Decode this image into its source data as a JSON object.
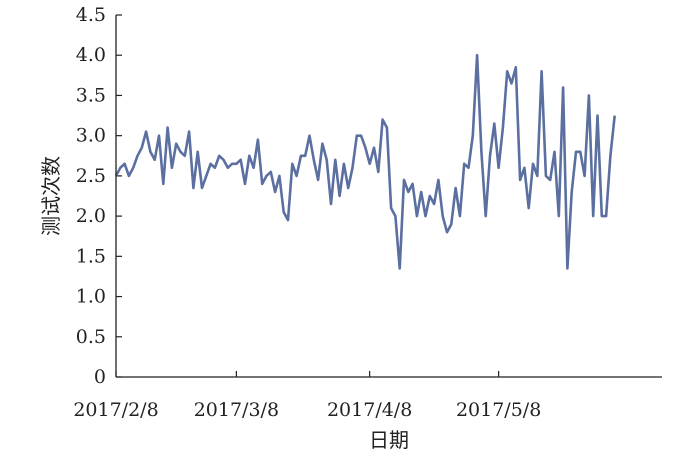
{
  "chart_data": {
    "type": "line",
    "xlabel": "日期",
    "ylabel": "测试次数",
    "ylim": [
      0,
      4.5
    ],
    "yticks": [
      "0",
      "0.5",
      "1.0",
      "1.5",
      "2.0",
      "2.5",
      "3.0",
      "3.5",
      "4.0",
      "4.5"
    ],
    "xlim": [
      "2017-02-08",
      "2017-06-15"
    ],
    "xticks": [
      {
        "date": "2017-02-08",
        "label": "2017/2/8"
      },
      {
        "date": "2017-03-08",
        "label": "2017/3/8"
      },
      {
        "date": "2017-04-08",
        "label": "2017/4/8"
      },
      {
        "date": "2017-05-08",
        "label": "2017/5/8"
      }
    ],
    "grid": false,
    "legend": "none",
    "line_color": "#5b6fa0",
    "series": [
      {
        "points": [
          [
            "2017-02-08",
            2.5
          ],
          [
            "2017-02-09",
            2.6
          ],
          [
            "2017-02-10",
            2.65
          ],
          [
            "2017-02-11",
            2.5
          ],
          [
            "2017-02-12",
            2.6
          ],
          [
            "2017-02-13",
            2.75
          ],
          [
            "2017-02-14",
            2.85
          ],
          [
            "2017-02-15",
            3.05
          ],
          [
            "2017-02-16",
            2.8
          ],
          [
            "2017-02-17",
            2.7
          ],
          [
            "2017-02-18",
            3.0
          ],
          [
            "2017-02-19",
            2.4
          ],
          [
            "2017-02-20",
            3.1
          ],
          [
            "2017-02-21",
            2.6
          ],
          [
            "2017-02-22",
            2.9
          ],
          [
            "2017-02-23",
            2.8
          ],
          [
            "2017-02-24",
            2.75
          ],
          [
            "2017-02-25",
            3.05
          ],
          [
            "2017-02-26",
            2.35
          ],
          [
            "2017-02-27",
            2.8
          ],
          [
            "2017-02-28",
            2.35
          ],
          [
            "2017-03-01",
            2.5
          ],
          [
            "2017-03-02",
            2.65
          ],
          [
            "2017-03-03",
            2.6
          ],
          [
            "2017-03-04",
            2.75
          ],
          [
            "2017-03-05",
            2.7
          ],
          [
            "2017-03-06",
            2.6
          ],
          [
            "2017-03-07",
            2.65
          ],
          [
            "2017-03-08",
            2.65
          ],
          [
            "2017-03-09",
            2.7
          ],
          [
            "2017-03-10",
            2.4
          ],
          [
            "2017-03-11",
            2.75
          ],
          [
            "2017-03-12",
            2.6
          ],
          [
            "2017-03-13",
            2.95
          ],
          [
            "2017-03-14",
            2.4
          ],
          [
            "2017-03-15",
            2.5
          ],
          [
            "2017-03-16",
            2.55
          ],
          [
            "2017-03-17",
            2.3
          ],
          [
            "2017-03-18",
            2.5
          ],
          [
            "2017-03-19",
            2.05
          ],
          [
            "2017-03-20",
            1.95
          ],
          [
            "2017-03-21",
            2.65
          ],
          [
            "2017-03-22",
            2.5
          ],
          [
            "2017-03-23",
            2.75
          ],
          [
            "2017-03-24",
            2.75
          ],
          [
            "2017-03-25",
            3.0
          ],
          [
            "2017-03-26",
            2.7
          ],
          [
            "2017-03-27",
            2.45
          ],
          [
            "2017-03-28",
            2.9
          ],
          [
            "2017-03-29",
            2.7
          ],
          [
            "2017-03-30",
            2.15
          ],
          [
            "2017-03-31",
            2.7
          ],
          [
            "2017-04-01",
            2.25
          ],
          [
            "2017-04-02",
            2.65
          ],
          [
            "2017-04-03",
            2.35
          ],
          [
            "2017-04-04",
            2.6
          ],
          [
            "2017-04-05",
            3.0
          ],
          [
            "2017-04-06",
            3.0
          ],
          [
            "2017-04-07",
            2.85
          ],
          [
            "2017-04-08",
            2.65
          ],
          [
            "2017-04-09",
            2.85
          ],
          [
            "2017-04-10",
            2.55
          ],
          [
            "2017-04-11",
            3.2
          ],
          [
            "2017-04-12",
            3.1
          ],
          [
            "2017-04-13",
            2.1
          ],
          [
            "2017-04-14",
            2.0
          ],
          [
            "2017-04-15",
            1.35
          ],
          [
            "2017-04-16",
            2.45
          ],
          [
            "2017-04-17",
            2.3
          ],
          [
            "2017-04-18",
            2.4
          ],
          [
            "2017-04-19",
            2.0
          ],
          [
            "2017-04-20",
            2.3
          ],
          [
            "2017-04-21",
            2.0
          ],
          [
            "2017-04-22",
            2.25
          ],
          [
            "2017-04-23",
            2.15
          ],
          [
            "2017-04-24",
            2.45
          ],
          [
            "2017-04-25",
            2.0
          ],
          [
            "2017-04-26",
            1.8
          ],
          [
            "2017-04-27",
            1.9
          ],
          [
            "2017-04-28",
            2.35
          ],
          [
            "2017-04-29",
            2.0
          ],
          [
            "2017-04-30",
            2.65
          ],
          [
            "2017-05-01",
            2.6
          ],
          [
            "2017-05-02",
            3.0
          ],
          [
            "2017-05-03",
            4.0
          ],
          [
            "2017-05-04",
            2.8
          ],
          [
            "2017-05-05",
            2.0
          ],
          [
            "2017-05-06",
            2.75
          ],
          [
            "2017-05-07",
            3.15
          ],
          [
            "2017-05-08",
            2.6
          ],
          [
            "2017-05-09",
            3.1
          ],
          [
            "2017-05-10",
            3.8
          ],
          [
            "2017-05-11",
            3.65
          ],
          [
            "2017-05-12",
            3.85
          ],
          [
            "2017-05-13",
            2.45
          ],
          [
            "2017-05-14",
            2.6
          ],
          [
            "2017-05-15",
            2.1
          ],
          [
            "2017-05-16",
            2.65
          ],
          [
            "2017-05-17",
            2.5
          ],
          [
            "2017-05-18",
            3.8
          ],
          [
            "2017-05-19",
            2.5
          ],
          [
            "2017-05-20",
            2.45
          ],
          [
            "2017-05-21",
            2.8
          ],
          [
            "2017-05-22",
            2.0
          ],
          [
            "2017-05-23",
            3.6
          ],
          [
            "2017-05-24",
            1.35
          ],
          [
            "2017-05-25",
            2.3
          ],
          [
            "2017-05-26",
            2.8
          ],
          [
            "2017-05-27",
            2.8
          ],
          [
            "2017-05-28",
            2.5
          ],
          [
            "2017-05-29",
            3.5
          ],
          [
            "2017-05-30",
            2.0
          ],
          [
            "2017-05-31",
            3.25
          ],
          [
            "2017-06-01",
            2.0
          ],
          [
            "2017-06-02",
            2.0
          ],
          [
            "2017-06-03",
            2.75
          ],
          [
            "2017-06-04",
            3.25
          ]
        ]
      }
    ]
  }
}
